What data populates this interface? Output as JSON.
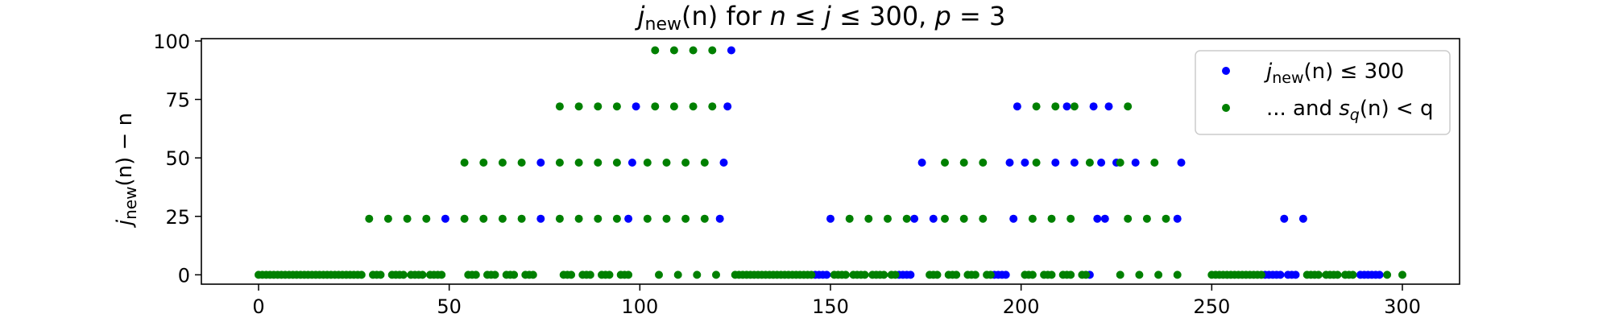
{
  "chart_data": {
    "type": "scatter",
    "title": "j_new(n) for n ≤ j ≤ 300, p = 3",
    "xlabel": "",
    "ylabel": "j_new(n) − n",
    "xlim": [
      -15,
      315
    ],
    "ylim": [
      -4,
      101
    ],
    "xticks": [
      0,
      50,
      100,
      150,
      200,
      250,
      300
    ],
    "yticks": [
      0,
      25,
      50,
      75,
      100
    ],
    "grid": false,
    "legend_position": "top-right",
    "series": [
      {
        "name": "j_new(n) ≤ 300",
        "color": "#0000ff",
        "points": [
          [
            49,
            24
          ],
          [
            74,
            24
          ],
          [
            97,
            24
          ],
          [
            121,
            24
          ],
          [
            74,
            48
          ],
          [
            98,
            48
          ],
          [
            122,
            48
          ],
          [
            99,
            72
          ],
          [
            123,
            72
          ],
          [
            124,
            96
          ],
          [
            146,
            0
          ],
          [
            147,
            0
          ],
          [
            148,
            0
          ],
          [
            149,
            0
          ],
          [
            150,
            24
          ],
          [
            168,
            0
          ],
          [
            169,
            0
          ],
          [
            170,
            0
          ],
          [
            171,
            0
          ],
          [
            172,
            24
          ],
          [
            174,
            48
          ],
          [
            177,
            24
          ],
          [
            193,
            0
          ],
          [
            194,
            0
          ],
          [
            195,
            0
          ],
          [
            196,
            0
          ],
          [
            197,
            48
          ],
          [
            198,
            24
          ],
          [
            199,
            72
          ],
          [
            201,
            48
          ],
          [
            209,
            48
          ],
          [
            212,
            72
          ],
          [
            214,
            48
          ],
          [
            218,
            0
          ],
          [
            219,
            72
          ],
          [
            220,
            24
          ],
          [
            221,
            48
          ],
          [
            222,
            24
          ],
          [
            223,
            72
          ],
          [
            225,
            48
          ],
          [
            230,
            48
          ],
          [
            241,
            24
          ],
          [
            242,
            48
          ],
          [
            264,
            0
          ],
          [
            265,
            0
          ],
          [
            266,
            0
          ],
          [
            267,
            0
          ],
          [
            268,
            0
          ],
          [
            269,
            24
          ],
          [
            270,
            0
          ],
          [
            271,
            0
          ],
          [
            272,
            0
          ],
          [
            274,
            24
          ],
          [
            289,
            0
          ],
          [
            290,
            0
          ],
          [
            291,
            0
          ],
          [
            292,
            0
          ],
          [
            293,
            0
          ],
          [
            294,
            0
          ]
        ]
      },
      {
        "name": "... and s_q(n) < q",
        "color": "#008000",
        "points": [
          [
            0,
            0
          ],
          [
            1,
            0
          ],
          [
            2,
            0
          ],
          [
            3,
            0
          ],
          [
            4,
            0
          ],
          [
            5,
            0
          ],
          [
            6,
            0
          ],
          [
            7,
            0
          ],
          [
            8,
            0
          ],
          [
            9,
            0
          ],
          [
            10,
            0
          ],
          [
            11,
            0
          ],
          [
            12,
            0
          ],
          [
            13,
            0
          ],
          [
            14,
            0
          ],
          [
            15,
            0
          ],
          [
            16,
            0
          ],
          [
            17,
            0
          ],
          [
            18,
            0
          ],
          [
            19,
            0
          ],
          [
            20,
            0
          ],
          [
            21,
            0
          ],
          [
            22,
            0
          ],
          [
            23,
            0
          ],
          [
            24,
            0
          ],
          [
            25,
            0
          ],
          [
            26,
            0
          ],
          [
            27,
            0
          ],
          [
            30,
            0
          ],
          [
            31,
            0
          ],
          [
            32,
            0
          ],
          [
            35,
            0
          ],
          [
            36,
            0
          ],
          [
            37,
            0
          ],
          [
            38,
            0
          ],
          [
            40,
            0
          ],
          [
            41,
            0
          ],
          [
            42,
            0
          ],
          [
            43,
            0
          ],
          [
            45,
            0
          ],
          [
            46,
            0
          ],
          [
            47,
            0
          ],
          [
            48,
            0
          ],
          [
            55,
            0
          ],
          [
            56,
            0
          ],
          [
            57,
            0
          ],
          [
            60,
            0
          ],
          [
            61,
            0
          ],
          [
            62,
            0
          ],
          [
            65,
            0
          ],
          [
            66,
            0
          ],
          [
            67,
            0
          ],
          [
            70,
            0
          ],
          [
            71,
            0
          ],
          [
            72,
            0
          ],
          [
            80,
            0
          ],
          [
            81,
            0
          ],
          [
            82,
            0
          ],
          [
            85,
            0
          ],
          [
            86,
            0
          ],
          [
            87,
            0
          ],
          [
            90,
            0
          ],
          [
            91,
            0
          ],
          [
            92,
            0
          ],
          [
            95,
            0
          ],
          [
            96,
            0
          ],
          [
            97,
            0
          ],
          [
            105,
            0
          ],
          [
            110,
            0
          ],
          [
            115,
            0
          ],
          [
            120,
            0
          ],
          [
            125,
            0
          ],
          [
            126,
            0
          ],
          [
            127,
            0
          ],
          [
            128,
            0
          ],
          [
            129,
            0
          ],
          [
            130,
            0
          ],
          [
            131,
            0
          ],
          [
            132,
            0
          ],
          [
            133,
            0
          ],
          [
            134,
            0
          ],
          [
            135,
            0
          ],
          [
            136,
            0
          ],
          [
            137,
            0
          ],
          [
            138,
            0
          ],
          [
            139,
            0
          ],
          [
            140,
            0
          ],
          [
            141,
            0
          ],
          [
            142,
            0
          ],
          [
            143,
            0
          ],
          [
            144,
            0
          ],
          [
            145,
            0
          ],
          [
            151,
            0
          ],
          [
            152,
            0
          ],
          [
            153,
            0
          ],
          [
            154,
            0
          ],
          [
            156,
            0
          ],
          [
            157,
            0
          ],
          [
            158,
            0
          ],
          [
            159,
            0
          ],
          [
            161,
            0
          ],
          [
            162,
            0
          ],
          [
            163,
            0
          ],
          [
            164,
            0
          ],
          [
            166,
            0
          ],
          [
            167,
            0
          ],
          [
            176,
            0
          ],
          [
            177,
            0
          ],
          [
            178,
            0
          ],
          [
            181,
            0
          ],
          [
            182,
            0
          ],
          [
            183,
            0
          ],
          [
            186,
            0
          ],
          [
            187,
            0
          ],
          [
            188,
            0
          ],
          [
            191,
            0
          ],
          [
            192,
            0
          ],
          [
            201,
            0
          ],
          [
            202,
            0
          ],
          [
            203,
            0
          ],
          [
            206,
            0
          ],
          [
            207,
            0
          ],
          [
            208,
            0
          ],
          [
            211,
            0
          ],
          [
            212,
            0
          ],
          [
            213,
            0
          ],
          [
            216,
            0
          ],
          [
            217,
            0
          ],
          [
            226,
            0
          ],
          [
            231,
            0
          ],
          [
            236,
            0
          ],
          [
            241,
            0
          ],
          [
            250,
            0
          ],
          [
            251,
            0
          ],
          [
            252,
            0
          ],
          [
            253,
            0
          ],
          [
            254,
            0
          ],
          [
            255,
            0
          ],
          [
            256,
            0
          ],
          [
            257,
            0
          ],
          [
            258,
            0
          ],
          [
            259,
            0
          ],
          [
            260,
            0
          ],
          [
            261,
            0
          ],
          [
            262,
            0
          ],
          [
            263,
            0
          ],
          [
            275,
            0
          ],
          [
            276,
            0
          ],
          [
            277,
            0
          ],
          [
            278,
            0
          ],
          [
            280,
            0
          ],
          [
            281,
            0
          ],
          [
            282,
            0
          ],
          [
            283,
            0
          ],
          [
            285,
            0
          ],
          [
            286,
            0
          ],
          [
            287,
            0
          ],
          [
            296,
            0
          ],
          [
            300,
            0
          ],
          [
            29,
            24
          ],
          [
            34,
            24
          ],
          [
            39,
            24
          ],
          [
            44,
            24
          ],
          [
            54,
            24
          ],
          [
            59,
            24
          ],
          [
            64,
            24
          ],
          [
            69,
            24
          ],
          [
            79,
            24
          ],
          [
            84,
            24
          ],
          [
            89,
            24
          ],
          [
            94,
            24
          ],
          [
            102,
            24
          ],
          [
            107,
            24
          ],
          [
            112,
            24
          ],
          [
            117,
            24
          ],
          [
            155,
            24
          ],
          [
            160,
            24
          ],
          [
            165,
            24
          ],
          [
            170,
            24
          ],
          [
            180,
            24
          ],
          [
            185,
            24
          ],
          [
            190,
            24
          ],
          [
            203,
            24
          ],
          [
            208,
            24
          ],
          [
            213,
            24
          ],
          [
            228,
            24
          ],
          [
            233,
            24
          ],
          [
            238,
            24
          ],
          [
            54,
            48
          ],
          [
            59,
            48
          ],
          [
            64,
            48
          ],
          [
            69,
            48
          ],
          [
            79,
            48
          ],
          [
            84,
            48
          ],
          [
            89,
            48
          ],
          [
            94,
            48
          ],
          [
            102,
            48
          ],
          [
            107,
            48
          ],
          [
            112,
            48
          ],
          [
            117,
            48
          ],
          [
            180,
            48
          ],
          [
            185,
            48
          ],
          [
            190,
            48
          ],
          [
            204,
            48
          ],
          [
            218,
            48
          ],
          [
            226,
            48
          ],
          [
            235,
            48
          ],
          [
            79,
            72
          ],
          [
            84,
            72
          ],
          [
            89,
            72
          ],
          [
            94,
            72
          ],
          [
            104,
            72
          ],
          [
            109,
            72
          ],
          [
            114,
            72
          ],
          [
            119,
            72
          ],
          [
            204,
            72
          ],
          [
            209,
            72
          ],
          [
            214,
            72
          ],
          [
            228,
            72
          ],
          [
            104,
            96
          ],
          [
            109,
            96
          ],
          [
            114,
            96
          ],
          [
            119,
            96
          ]
        ]
      }
    ]
  },
  "title_parts": {
    "j": "j",
    "sub": "new",
    "n_paren": "(n)",
    "for": " for ",
    "n": "n",
    "le1": " ≤ ",
    "j2": "j",
    "le2": " ≤ 300, ",
    "p": "p",
    "eq": " = 3"
  },
  "ylabel_parts": {
    "j": "j",
    "sub": "new",
    "rest_paren": "(n) − n"
  },
  "legend": {
    "entry1": {
      "j": "j",
      "sub": "new",
      "rest": "(n) ≤ 300"
    },
    "entry2": {
      "pre": "... and ",
      "s": "s",
      "sub": "q",
      "rest": "(n) < q"
    }
  }
}
